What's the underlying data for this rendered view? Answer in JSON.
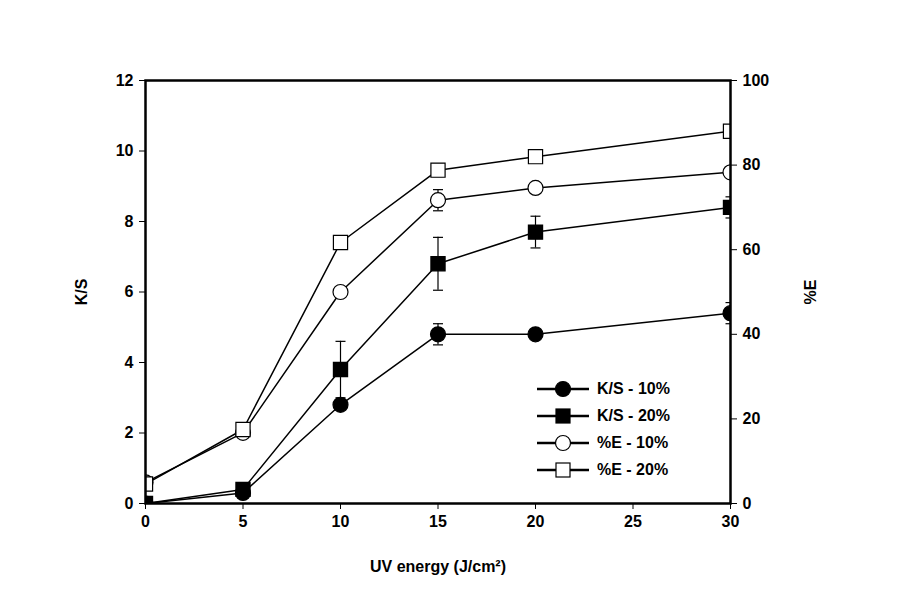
{
  "chart_data": {
    "type": "line",
    "xlabel": "UV energy (J/cm²)",
    "ylabel": "K/S",
    "y2label": "%E",
    "x": [
      0,
      5,
      10,
      15,
      20,
      30
    ],
    "xlim": [
      0,
      30
    ],
    "xticks": [
      0,
      5,
      10,
      15,
      20,
      25,
      30
    ],
    "ylim": [
      0,
      12
    ],
    "yticks": [
      0,
      2,
      4,
      6,
      8,
      10,
      12
    ],
    "y2lim": [
      0,
      100
    ],
    "y2ticks": [
      0,
      20,
      40,
      60,
      80,
      100
    ],
    "legend": "lower right",
    "series": [
      {
        "name": "K/S - 10%",
        "color": "#000000",
        "marker": "circle",
        "values": [
          0,
          0.3,
          2.8,
          4.8,
          4.8,
          5.4
        ],
        "errors": [
          null,
          null,
          null,
          0.3,
          null,
          0.3
        ]
      },
      {
        "name": "K/S - 20%",
        "color": "#000000",
        "marker": "square",
        "values": [
          0,
          0.4,
          3.8,
          6.8,
          7.7,
          8.4
        ],
        "errors": [
          null,
          null,
          0.8,
          0.75,
          0.45,
          0.3
        ]
      },
      {
        "name": "%E - 10%",
        "color": "#000000",
        "marker": "circle-open",
        "axis": "y2",
        "values": [
          5,
          16.7,
          50,
          71.7,
          74.6,
          78.3
        ],
        "errors": [
          null,
          null,
          null,
          2.5,
          null,
          null
        ]
      },
      {
        "name": "%E - 20%",
        "color": "#000000",
        "marker": "square-open",
        "axis": "y2",
        "values": [
          4.6,
          17.5,
          61.7,
          78.8,
          82,
          88
        ],
        "errors": [
          null,
          null,
          null,
          1.5,
          null,
          null
        ]
      }
    ]
  }
}
